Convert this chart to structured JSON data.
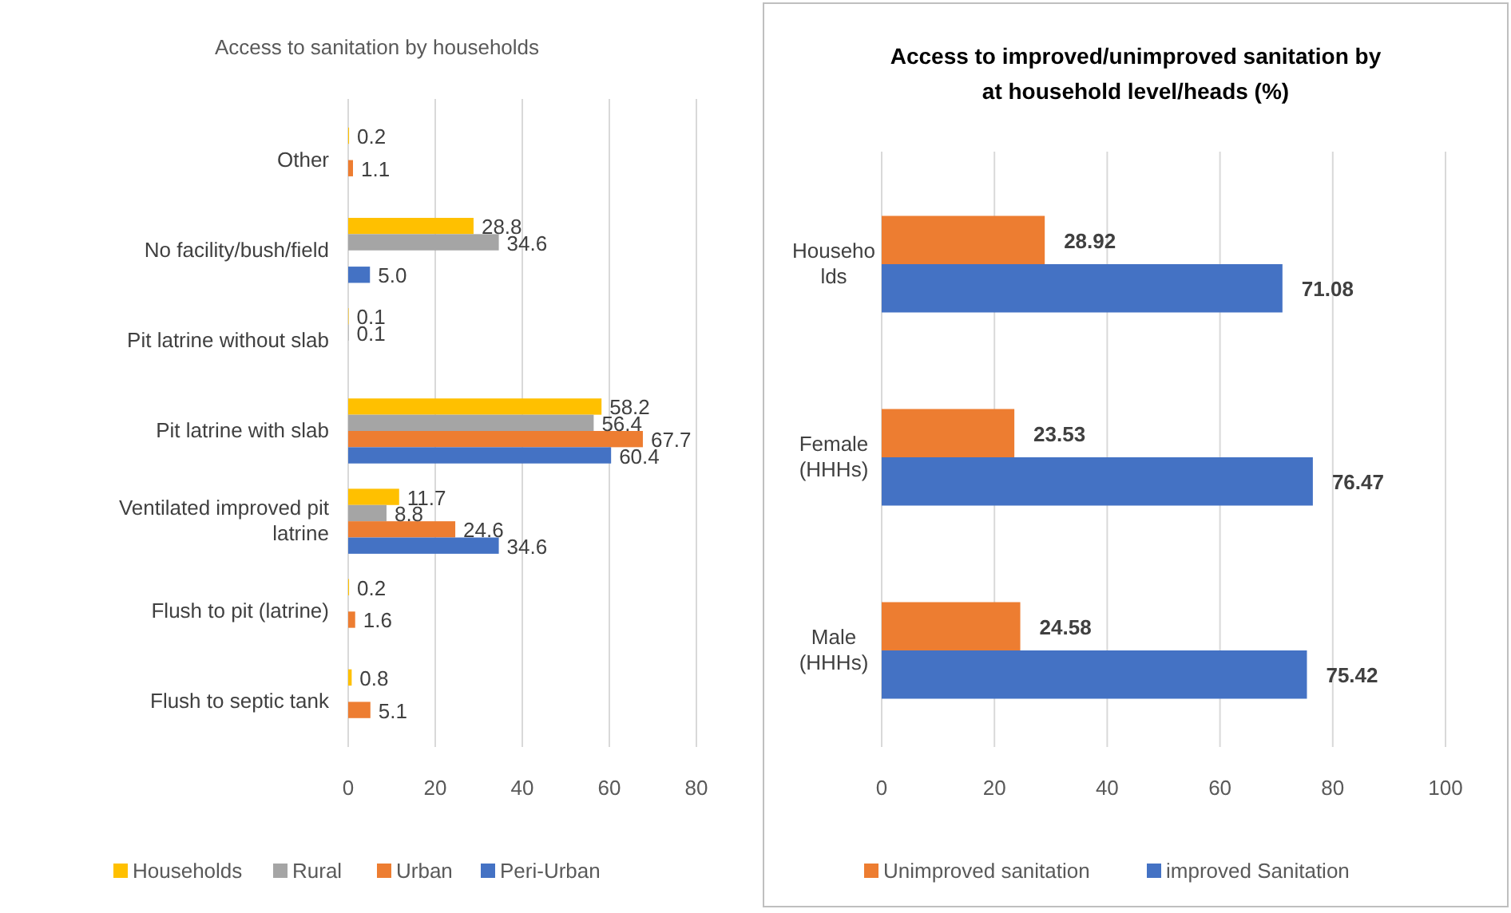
{
  "chart_data": [
    {
      "type": "bar",
      "orientation": "horizontal",
      "title": "Access to sanitation by households",
      "categories": [
        "Other",
        "No facility/bush/field",
        "Pit latrine without slab",
        "Pit latrine with slab",
        "Ventilated improved pit latrine",
        "Flush to pit (latrine)",
        "Flush to septic tank"
      ],
      "series": [
        {
          "name": "Households",
          "color": "#ffc000",
          "values": [
            0.2,
            28.8,
            0.1,
            58.2,
            11.7,
            0.2,
            0.8
          ]
        },
        {
          "name": "Rural",
          "color": "#a5a5a5",
          "values": [
            null,
            34.6,
            0.1,
            56.4,
            8.8,
            null,
            null
          ]
        },
        {
          "name": "Urban",
          "color": "#ed7d31",
          "values": [
            1.1,
            null,
            null,
            67.7,
            24.6,
            1.6,
            5.1
          ]
        },
        {
          "name": "Peri-Urban",
          "color": "#4472c4",
          "values": [
            null,
            5.0,
            null,
            60.4,
            34.6,
            null,
            null
          ],
          "value_labels": [
            null,
            "5.0",
            null,
            "60.4",
            "34.6",
            null,
            null
          ]
        }
      ],
      "xlim": [
        0,
        80
      ],
      "xticks": [
        0,
        20,
        40,
        60,
        80
      ],
      "grid": "x",
      "legend": "bottom",
      "data_labels": true
    },
    {
      "type": "bar",
      "orientation": "horizontal",
      "title": "Access to improved/unimproved sanitation by at household level/heads (%)",
      "categories": [
        "Households",
        "Female (HHHs)",
        "Male (HHHs)"
      ],
      "series": [
        {
          "name": "Unimproved sanitation",
          "color": "#ed7d31",
          "values": [
            28.92,
            23.53,
            24.58
          ]
        },
        {
          "name": "improved Sanitation",
          "color": "#4472c4",
          "values": [
            71.08,
            76.47,
            75.42
          ]
        }
      ],
      "xlim": [
        0,
        100
      ],
      "xticks": [
        0,
        20,
        40,
        60,
        80,
        100
      ],
      "grid": "x",
      "legend": "bottom",
      "data_labels": true
    }
  ]
}
